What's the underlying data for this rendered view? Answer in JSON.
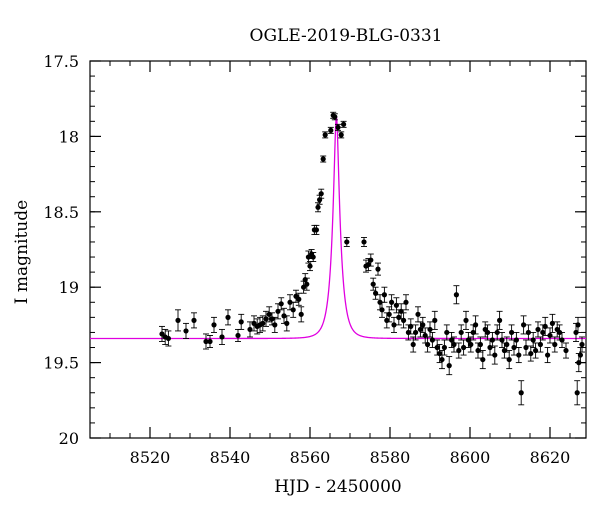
{
  "chart_data": {
    "type": "scatter",
    "title": "OGLE-2019-BLG-0331",
    "xlabel": "HJD - 2450000",
    "ylabel": "I magnitude",
    "xlim": [
      8505,
      8629
    ],
    "ylim": [
      17.5,
      20.0
    ],
    "y_inverted": true,
    "x_ticks": [
      8520,
      8540,
      8560,
      8580,
      8600,
      8620
    ],
    "x_tick_labels": [
      "8520",
      "8540",
      "8560",
      "8580",
      "8600",
      "8620"
    ],
    "y_ticks": [
      17.5,
      18.0,
      18.5,
      19.0,
      19.5,
      20.0
    ],
    "y_tick_labels": [
      "17.5",
      "18",
      "18.5",
      "19",
      "19.5",
      "20"
    ],
    "grid": false,
    "model": {
      "name": "",
      "color": "#e000e0",
      "t0": 8566.6,
      "baseline": 19.34,
      "peak": 17.87,
      "tE": 2.0
    },
    "series": [
      {
        "name": "",
        "color": "#000000",
        "points": [
          [
            8523.0,
            19.31,
            0.05
          ],
          [
            8523.8,
            19.33,
            0.05
          ],
          [
            8524.6,
            19.34,
            0.05
          ],
          [
            8527.0,
            19.22,
            0.07
          ],
          [
            8529.0,
            19.29,
            0.05
          ],
          [
            8531.0,
            19.22,
            0.05
          ],
          [
            8534.0,
            19.36,
            0.05
          ],
          [
            8535.0,
            19.36,
            0.04
          ],
          [
            8536.0,
            19.25,
            0.05
          ],
          [
            8538.0,
            19.33,
            0.05
          ],
          [
            8539.5,
            19.2,
            0.05
          ],
          [
            8542.0,
            19.32,
            0.04
          ],
          [
            8542.8,
            19.23,
            0.05
          ],
          [
            8545.0,
            19.28,
            0.05
          ],
          [
            8546.0,
            19.24,
            0.05
          ],
          [
            8546.8,
            19.26,
            0.05
          ],
          [
            8547.5,
            19.25,
            0.05
          ],
          [
            8548.2,
            19.24,
            0.05
          ],
          [
            8549.0,
            19.21,
            0.05
          ],
          [
            8549.8,
            19.18,
            0.05
          ],
          [
            8550.5,
            19.21,
            0.04
          ],
          [
            8551.2,
            19.25,
            0.05
          ],
          [
            8552.0,
            19.16,
            0.05
          ],
          [
            8552.8,
            19.11,
            0.04
          ],
          [
            8553.5,
            19.19,
            0.05
          ],
          [
            8554.2,
            19.24,
            0.05
          ],
          [
            8555.0,
            19.1,
            0.05
          ],
          [
            8555.8,
            19.15,
            0.05
          ],
          [
            8556.5,
            19.06,
            0.04
          ],
          [
            8557.2,
            19.08,
            0.04
          ],
          [
            8557.8,
            19.18,
            0.05
          ],
          [
            8558.4,
            19.0,
            0.04
          ],
          [
            8558.8,
            18.95,
            0.04
          ],
          [
            8559.2,
            18.98,
            0.04
          ],
          [
            8559.6,
            18.8,
            0.04
          ],
          [
            8560.0,
            18.86,
            0.03
          ],
          [
            8560.4,
            18.78,
            0.03
          ],
          [
            8560.8,
            18.8,
            0.03
          ],
          [
            8561.1,
            18.62,
            0.03
          ],
          [
            8561.6,
            18.62,
            0.03
          ],
          [
            8562.0,
            18.47,
            0.03
          ],
          [
            8562.4,
            18.42,
            0.03
          ],
          [
            8562.8,
            18.38,
            0.03
          ],
          [
            8563.3,
            18.15,
            0.02
          ],
          [
            8563.8,
            17.99,
            0.02
          ],
          [
            8565.2,
            17.96,
            0.02
          ],
          [
            8565.8,
            17.86,
            0.02
          ],
          [
            8566.2,
            17.87,
            0.02
          ],
          [
            8567.0,
            17.94,
            0.02
          ],
          [
            8567.8,
            17.99,
            0.02
          ],
          [
            8568.4,
            17.92,
            0.02
          ],
          [
            8569.2,
            18.7,
            0.03
          ],
          [
            8573.5,
            18.7,
            0.03
          ],
          [
            8574.0,
            18.86,
            0.04
          ],
          [
            8574.6,
            18.85,
            0.04
          ],
          [
            8575.2,
            18.82,
            0.04
          ],
          [
            8575.8,
            18.98,
            0.04
          ],
          [
            8576.4,
            19.04,
            0.04
          ],
          [
            8577.0,
            18.88,
            0.04
          ],
          [
            8577.5,
            19.1,
            0.05
          ],
          [
            8578.0,
            19.15,
            0.05
          ],
          [
            8578.6,
            19.05,
            0.05
          ],
          [
            8579.2,
            19.22,
            0.05
          ],
          [
            8579.8,
            19.18,
            0.05
          ],
          [
            8580.4,
            19.1,
            0.05
          ],
          [
            8581.0,
            19.25,
            0.05
          ],
          [
            8581.6,
            19.12,
            0.05
          ],
          [
            8582.2,
            19.2,
            0.05
          ],
          [
            8582.8,
            19.16,
            0.05
          ],
          [
            8583.4,
            19.22,
            0.05
          ],
          [
            8584.0,
            19.1,
            0.05
          ],
          [
            8584.6,
            19.3,
            0.05
          ],
          [
            8585.2,
            19.26,
            0.05
          ],
          [
            8585.8,
            19.38,
            0.05
          ],
          [
            8586.4,
            19.3,
            0.05
          ],
          [
            8587.0,
            19.18,
            0.05
          ],
          [
            8587.6,
            19.28,
            0.05
          ],
          [
            8588.2,
            19.25,
            0.05
          ],
          [
            8588.8,
            19.32,
            0.05
          ],
          [
            8589.4,
            19.38,
            0.05
          ],
          [
            8590.0,
            19.28,
            0.05
          ],
          [
            8590.6,
            19.35,
            0.05
          ],
          [
            8591.2,
            19.22,
            0.06
          ],
          [
            8591.8,
            19.4,
            0.05
          ],
          [
            8592.4,
            19.44,
            0.06
          ],
          [
            8593.0,
            19.48,
            0.06
          ],
          [
            8593.6,
            19.4,
            0.05
          ],
          [
            8594.2,
            19.3,
            0.05
          ],
          [
            8594.8,
            19.52,
            0.06
          ],
          [
            8595.4,
            19.35,
            0.05
          ],
          [
            8596.0,
            19.38,
            0.05
          ],
          [
            8596.6,
            19.05,
            0.06
          ],
          [
            8597.2,
            19.42,
            0.05
          ],
          [
            8597.8,
            19.3,
            0.05
          ],
          [
            8598.4,
            19.4,
            0.05
          ],
          [
            8599.0,
            19.22,
            0.06
          ],
          [
            8599.6,
            19.35,
            0.05
          ],
          [
            8600.2,
            19.38,
            0.05
          ],
          [
            8600.8,
            19.3,
            0.05
          ],
          [
            8601.4,
            19.25,
            0.06
          ],
          [
            8602.0,
            19.42,
            0.05
          ],
          [
            8602.6,
            19.38,
            0.05
          ],
          [
            8603.2,
            19.48,
            0.06
          ],
          [
            8603.8,
            19.28,
            0.05
          ],
          [
            8604.4,
            19.3,
            0.05
          ],
          [
            8605.0,
            19.4,
            0.05
          ],
          [
            8605.6,
            19.35,
            0.05
          ],
          [
            8606.2,
            19.45,
            0.06
          ],
          [
            8606.8,
            19.3,
            0.05
          ],
          [
            8607.4,
            19.22,
            0.06
          ],
          [
            8608.0,
            19.35,
            0.05
          ],
          [
            8608.6,
            19.42,
            0.05
          ],
          [
            8609.2,
            19.38,
            0.05
          ],
          [
            8609.8,
            19.48,
            0.06
          ],
          [
            8610.4,
            19.3,
            0.05
          ],
          [
            8611.0,
            19.4,
            0.05
          ],
          [
            8611.6,
            19.35,
            0.05
          ],
          [
            8612.2,
            19.45,
            0.05
          ],
          [
            8612.8,
            19.7,
            0.08
          ],
          [
            8613.4,
            19.25,
            0.06
          ],
          [
            8614.0,
            19.4,
            0.05
          ],
          [
            8614.6,
            19.3,
            0.05
          ],
          [
            8615.2,
            19.44,
            0.05
          ],
          [
            8615.8,
            19.35,
            0.05
          ],
          [
            8616.4,
            19.42,
            0.05
          ],
          [
            8617.0,
            19.28,
            0.05
          ],
          [
            8617.6,
            19.38,
            0.05
          ],
          [
            8618.2,
            19.3,
            0.05
          ],
          [
            8618.8,
            19.26,
            0.06
          ],
          [
            8619.4,
            19.45,
            0.05
          ],
          [
            8620.0,
            19.32,
            0.05
          ],
          [
            8620.6,
            19.24,
            0.06
          ],
          [
            8621.2,
            19.38,
            0.05
          ],
          [
            8621.8,
            19.28,
            0.05
          ],
          [
            8622.4,
            19.3,
            0.05
          ],
          [
            8623.0,
            19.35,
            0.05
          ],
          [
            8624.0,
            19.42,
            0.05
          ],
          [
            8626.8,
            19.7,
            0.08
          ],
          [
            8627.2,
            19.5,
            0.06
          ],
          [
            8627.6,
            19.45,
            0.05
          ],
          [
            8628.0,
            19.38,
            0.05
          ],
          [
            8626.5,
            19.3,
            0.06
          ],
          [
            8627.0,
            19.25,
            0.05
          ]
        ]
      }
    ]
  }
}
